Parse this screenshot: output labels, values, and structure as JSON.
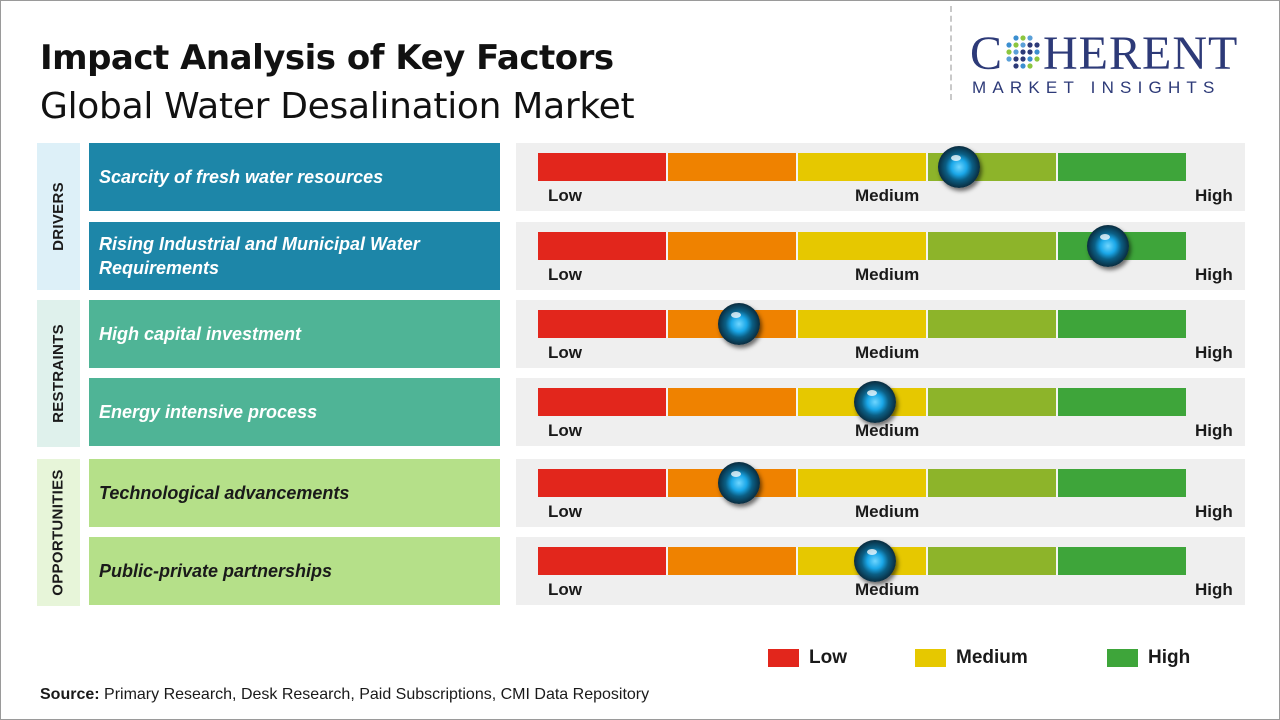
{
  "header": {
    "title": "Impact Analysis of Key Factors",
    "subtitle": "Global Water Desalination Market"
  },
  "logo": {
    "main_prefix": "C",
    "main_suffix": "HERENT",
    "sub": "MARKET INSIGHTS",
    "color": "#2d3a78"
  },
  "scale": {
    "low_label": "Low",
    "medium_label": "Medium",
    "high_label": "High",
    "segment_colors": [
      "#e2261c",
      "#ef8200",
      "#e6c800",
      "#8db42a",
      "#3ea53a"
    ]
  },
  "chart_data": {
    "type": "table",
    "scale_min": 0,
    "scale_max": 1,
    "categories": [
      {
        "name": "DRIVERS",
        "band_color": "#ddf0f8",
        "box_color": "#1d86a8",
        "text_color": "#ffffff",
        "factors": [
          {
            "label": "Scarcity of fresh water resources",
            "level": 0.65
          },
          {
            "label": "Rising Industrial and Municipal Water Requirements",
            "level": 0.88
          }
        ]
      },
      {
        "name": "RESTRAINTS",
        "band_color": "#dff1ec",
        "box_color": "#4fb496",
        "text_color": "#ffffff",
        "factors": [
          {
            "label": "High capital investment",
            "level": 0.31
          },
          {
            "label": "Energy intensive process",
            "level": 0.52
          }
        ]
      },
      {
        "name": "OPPORTUNITIES",
        "band_color": "#e7f5d9",
        "box_color": "#b5e089",
        "text_color": "#1a1a1a",
        "factors": [
          {
            "label": "Technological advancements",
            "level": 0.31
          },
          {
            "label": "Public-private partnerships",
            "level": 0.52
          }
        ]
      }
    ],
    "legend": [
      {
        "label": "Low",
        "color": "#e2261c"
      },
      {
        "label": "Medium",
        "color": "#e6c800"
      },
      {
        "label": "High",
        "color": "#3ea53a"
      }
    ]
  },
  "footer": {
    "source_label": "Source:",
    "source_text": " Primary Research, Desk Research, Paid Subscriptions, CMI Data Repository"
  }
}
